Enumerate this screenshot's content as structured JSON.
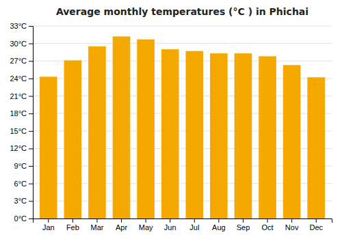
{
  "chart_data": {
    "type": "bar",
    "title": "Average monthly temperatures (°C ) in Phichai",
    "categories": [
      "Jan",
      "Feb",
      "Mar",
      "Apr",
      "May",
      "Jun",
      "Jul",
      "Aug",
      "Sep",
      "Oct",
      "Nov",
      "Dec"
    ],
    "values": [
      24.3,
      27.1,
      29.5,
      31.2,
      30.7,
      29.0,
      28.7,
      28.3,
      28.3,
      27.8,
      26.3,
      24.2
    ],
    "color": "#F5A800",
    "ylim": [
      0,
      33
    ],
    "yticks": [
      {
        "value": 0,
        "label": "0°C"
      },
      {
        "value": 3,
        "label": "3°C"
      },
      {
        "value": 6,
        "label": "6°C"
      },
      {
        "value": 9,
        "label": "9°C"
      },
      {
        "value": 12,
        "label": "12°C"
      },
      {
        "value": 15,
        "label": "15°C"
      },
      {
        "value": 18,
        "label": "18°C"
      },
      {
        "value": 21,
        "label": "21°C"
      },
      {
        "value": 24,
        "label": "24°C"
      },
      {
        "value": 27,
        "label": "27°C"
      },
      {
        "value": 30,
        "label": "30°C"
      },
      {
        "value": 33,
        "label": "33°C"
      }
    ],
    "grid": true
  }
}
